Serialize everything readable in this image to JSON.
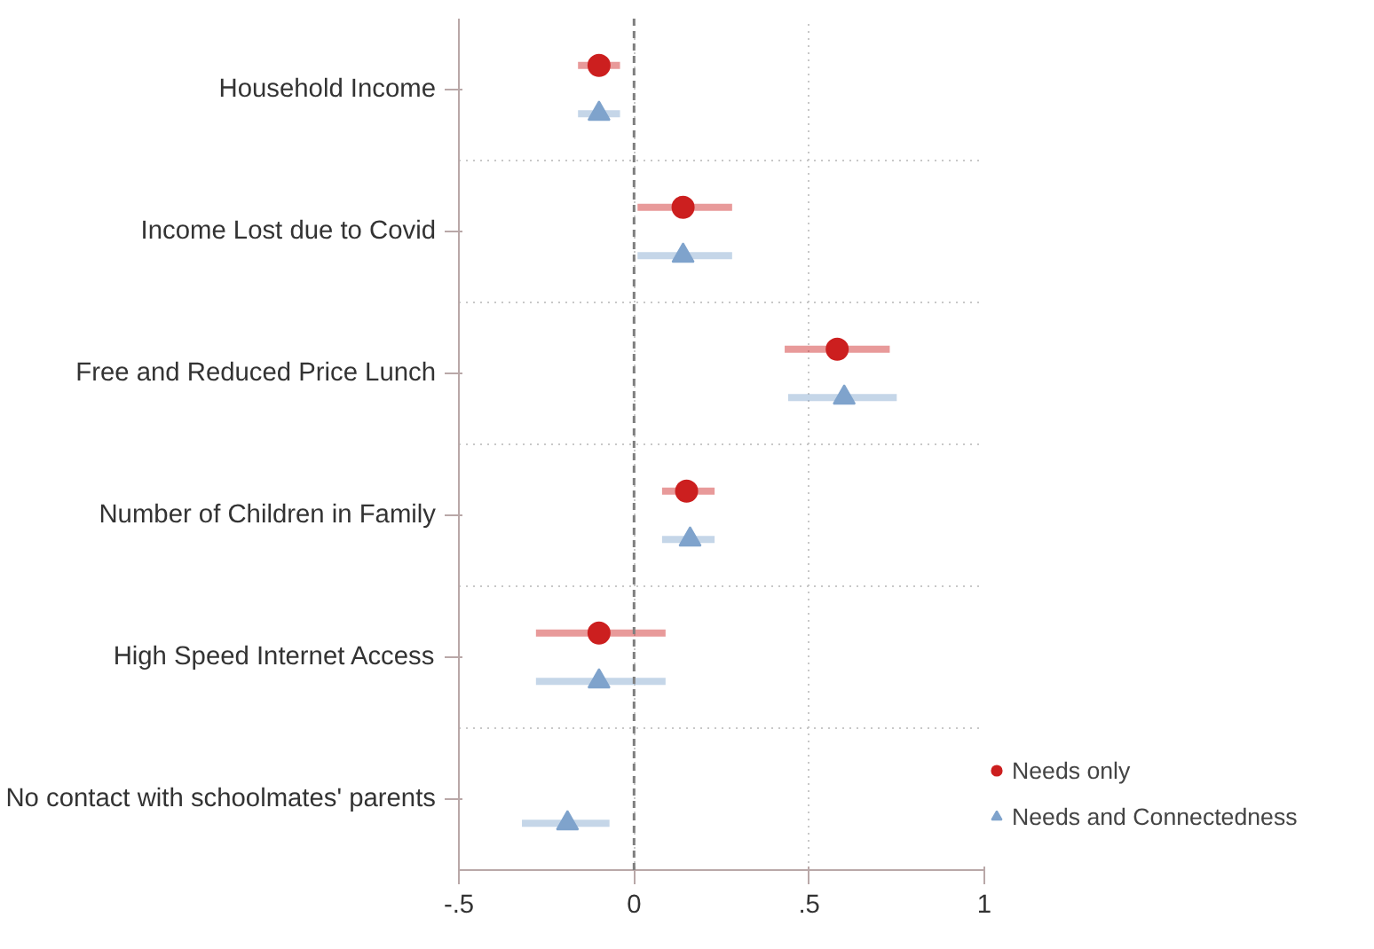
{
  "chart_data": {
    "type": "scatter",
    "orientation": "horizontal",
    "categories": [
      "Household Income",
      "Income Lost due to Covid",
      "Free and Reduced Price Lunch",
      "Number of Children in Family",
      "High Speed Internet Access",
      "No contact with schoolmates' parents"
    ],
    "series": [
      {
        "name": "Needs only",
        "color": "#cc1f1f",
        "marker": "circle",
        "values": [
          -0.1,
          0.14,
          0.58,
          0.15,
          -0.1,
          null
        ],
        "errors": [
          [
            -0.16,
            -0.04
          ],
          [
            0.01,
            0.28
          ],
          [
            0.43,
            0.73
          ],
          [
            0.08,
            0.23
          ],
          [
            -0.28,
            0.09
          ],
          null
        ]
      },
      {
        "name": "Needs and Connectedness",
        "color": "#7fa3cc",
        "marker": "triangle",
        "values": [
          -0.1,
          0.14,
          0.6,
          0.16,
          -0.1,
          -0.19
        ],
        "errors": [
          [
            -0.16,
            -0.04
          ],
          [
            0.01,
            0.28
          ],
          [
            0.44,
            0.75
          ],
          [
            0.08,
            0.23
          ],
          [
            -0.28,
            0.09
          ],
          [
            -0.32,
            -0.07
          ]
        ]
      }
    ],
    "xlim": [
      -0.5,
      1
    ],
    "xticks": [
      {
        "value": -0.5,
        "label": "-.5"
      },
      0,
      {
        "value": 0.5,
        "label": ".5"
      },
      1
    ],
    "ref_lines": [
      {
        "axis": "x",
        "value": 0,
        "color": "#7f7f7f",
        "line_style": "dashed"
      }
    ],
    "grid": true,
    "legend": "bottom right"
  }
}
